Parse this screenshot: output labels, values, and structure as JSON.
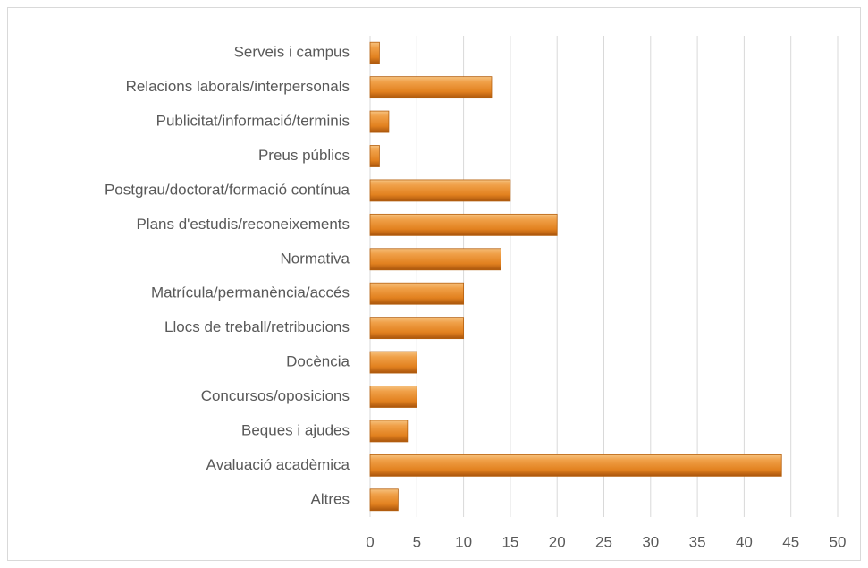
{
  "chart_data": {
    "type": "bar",
    "orientation": "horizontal",
    "categories": [
      "Serveis i campus",
      "Relacions laborals/interpersonals",
      "Publicitat/informació/terminis",
      "Preus públics",
      "Postgrau/doctorat/formació contínua",
      "Plans d'estudis/reconeixements",
      "Normativa",
      "Matrícula/permanència/accés",
      "Llocs de treball/retribucions",
      "Docència",
      "Concursos/oposicions",
      "Beques i ajudes",
      "Avaluació acadèmica",
      "Altres"
    ],
    "values": [
      1,
      13,
      2,
      1,
      15,
      20,
      14,
      10,
      10,
      5,
      5,
      4,
      44,
      3
    ],
    "color": "#e8892a",
    "xlim": [
      0,
      50
    ],
    "xticks": [
      0,
      5,
      10,
      15,
      20,
      25,
      30,
      35,
      40,
      45,
      50
    ],
    "grid": true
  }
}
